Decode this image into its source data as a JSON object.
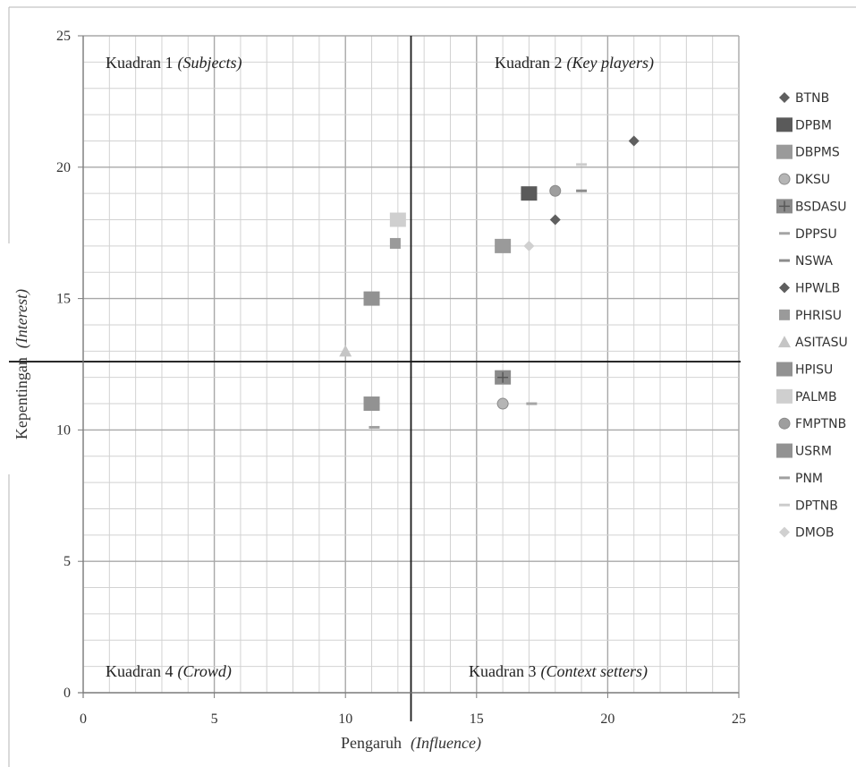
{
  "chart_data": {
    "type": "scatter",
    "xlabel": {
      "main": "Pengaruh",
      "italic": "Influence"
    },
    "ylabel": {
      "main": "Kepentingan",
      "italic": "Interest"
    },
    "xlim": [
      0,
      25
    ],
    "ylim": [
      0,
      25
    ],
    "xticks": [
      0,
      5,
      10,
      15,
      20,
      25
    ],
    "yticks": [
      0,
      5,
      10,
      15,
      20,
      25
    ],
    "minor_grid_step": 1,
    "grid": true,
    "divider_lines": {
      "x": 12.5,
      "y": 12.6
    },
    "quadrants": [
      {
        "name": "q1",
        "main": "Kuadran 1",
        "italic": "Subjects",
        "position": "top-left"
      },
      {
        "name": "q2",
        "main": "Kuadran 2",
        "italic": "Key players",
        "position": "top-right"
      },
      {
        "name": "q3",
        "main": "Kuadran 3",
        "italic": "Context setters",
        "position": "bottom-right"
      },
      {
        "name": "q4",
        "main": "Kuadran 4",
        "italic": "Crowd",
        "position": "bottom-left"
      }
    ],
    "legend_position": "right",
    "series": [
      {
        "name": "BTNB",
        "marker": "diamond",
        "color": "#5f5f5f",
        "x": 21,
        "y": 21
      },
      {
        "name": "DPBM",
        "marker": "square-large",
        "color": "#5a5a5a",
        "x": 17,
        "y": 19
      },
      {
        "name": "DBPMS",
        "marker": "square-large",
        "color": "#9a9a9a",
        "x": 16,
        "y": 17
      },
      {
        "name": "DKSU",
        "marker": "circle",
        "color": "#b5b5b5",
        "x": 16,
        "y": 11
      },
      {
        "name": "BSDASU",
        "marker": "square-plus",
        "color": "#8a8a8a",
        "x": 16,
        "y": 12
      },
      {
        "name": "DPPSU",
        "marker": "dash",
        "color": "#a5a5a5",
        "x": 17.1,
        "y": 11
      },
      {
        "name": "NSWA",
        "marker": "dash",
        "color": "#8c8c8c",
        "x": 19,
        "y": 19.1
      },
      {
        "name": "HPWLB",
        "marker": "diamond",
        "color": "#5f5f5f",
        "x": 18,
        "y": 18
      },
      {
        "name": "PHRISU",
        "marker": "square",
        "color": "#9a9a9a",
        "x": 11.9,
        "y": 17.1
      },
      {
        "name": "ASITASU",
        "marker": "triangle",
        "color": "#c5c5c5",
        "x": 10,
        "y": 13
      },
      {
        "name": "HPISU",
        "marker": "square-large",
        "color": "#929292",
        "x": 11,
        "y": 15
      },
      {
        "name": "PALMB",
        "marker": "square-large",
        "color": "#cfcfcf",
        "x": 12,
        "y": 18
      },
      {
        "name": "FMPTNB",
        "marker": "circle",
        "color": "#9e9e9e",
        "x": 18,
        "y": 19.1
      },
      {
        "name": "USRM",
        "marker": "square-large",
        "color": "#929292",
        "x": 11,
        "y": 11
      },
      {
        "name": "PNM",
        "marker": "dash",
        "color": "#a0a0a0",
        "x": 11.1,
        "y": 10.1
      },
      {
        "name": "DPTNB",
        "marker": "dash",
        "color": "#cccccc",
        "x": 19,
        "y": 20.1
      },
      {
        "name": "DMOB",
        "marker": "diamond",
        "color": "#d0d0d0",
        "x": 17,
        "y": 17
      }
    ]
  }
}
